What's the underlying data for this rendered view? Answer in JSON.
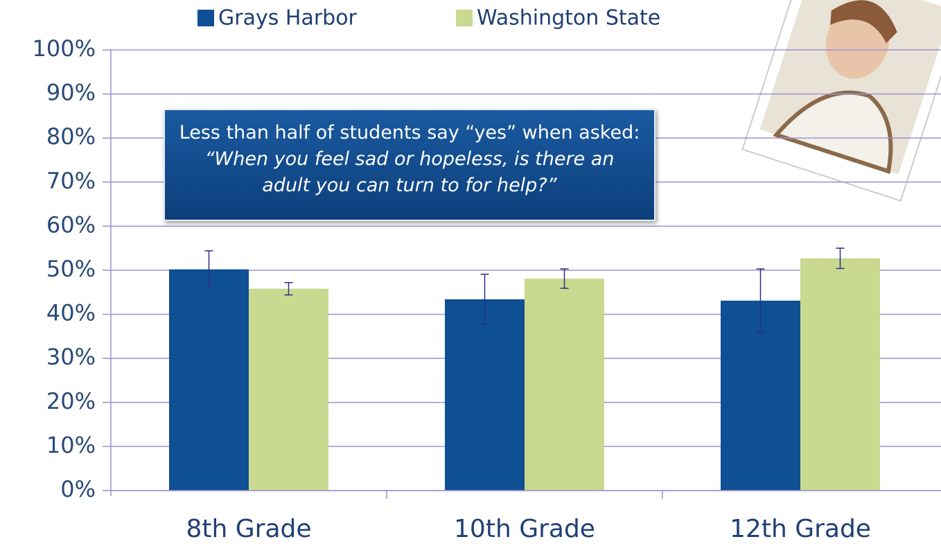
{
  "chart_data": {
    "type": "bar",
    "categories": [
      "8th Grade",
      "10th Grade",
      "12th Grade"
    ],
    "series": [
      {
        "name": "Grays Harbor",
        "color": "#0f4f93",
        "values": [
          50.2,
          43.4,
          43.1
        ],
        "errors": [
          4.2,
          5.7,
          7.2
        ]
      },
      {
        "name": "Washington State",
        "color": "#c9d98f",
        "values": [
          45.8,
          48.1,
          52.7
        ],
        "errors": [
          1.4,
          2.2,
          2.3
        ]
      }
    ],
    "ylim": [
      0,
      100
    ],
    "yticks": [
      {
        "value": 0,
        "label": "0%"
      },
      {
        "value": 10,
        "label": "10%"
      },
      {
        "value": 20,
        "label": "20%"
      },
      {
        "value": 30,
        "label": "30%"
      },
      {
        "value": 40,
        "label": "40%"
      },
      {
        "value": 50,
        "label": "50%"
      },
      {
        "value": 60,
        "label": "60%"
      },
      {
        "value": 70,
        "label": "70%"
      },
      {
        "value": 80,
        "label": "80%"
      },
      {
        "value": 90,
        "label": "90%"
      },
      {
        "value": 100,
        "label": "100%"
      }
    ],
    "grid": true,
    "annotation": "Less than half of students say “yes” when asked:",
    "annotation_quote": "“When you feel sad or hopeless, is there an adult you can turn to for help?”"
  }
}
